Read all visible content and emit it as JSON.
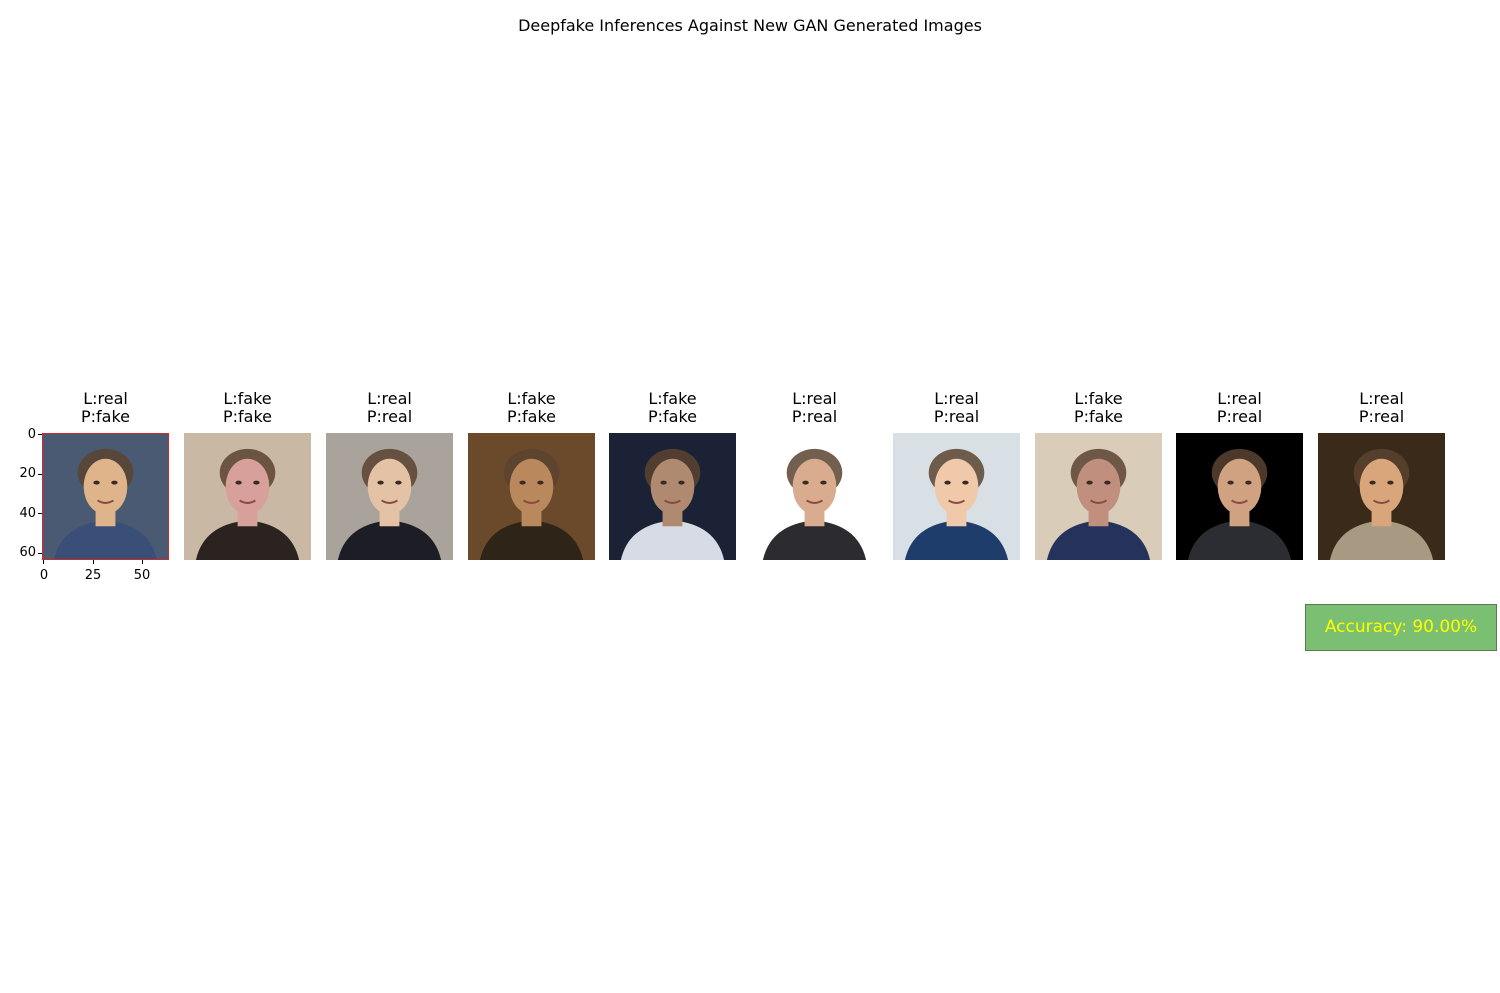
{
  "chart_data": {
    "type": "image-grid",
    "title": "Deepfake Inferences Against New GAN Generated Images",
    "first_axes_yticks": [
      "0",
      "20",
      "40",
      "60"
    ],
    "first_axes_xticks": [
      "0",
      "25",
      "50"
    ],
    "axis_range": [
      0,
      64
    ],
    "panels": [
      {
        "label": "L:real",
        "prediction": "P:fake",
        "subject": "man-with-red-headband-behind",
        "bg": "#4a5a72",
        "face": "#e0b48a",
        "suit": "#3a4f78",
        "mismatch": true
      },
      {
        "label": "L:fake",
        "prediction": "P:fake",
        "subject": "gan-blurred-face",
        "bg": "#c9b9a4",
        "face": "#d8a09a",
        "suit": "#2a2320",
        "mismatch": false
      },
      {
        "label": "L:real",
        "prediction": "P:real",
        "subject": "grey-haired-man-street",
        "bg": "#a9a39b",
        "face": "#e3c2a6",
        "suit": "#1d1d26",
        "mismatch": false
      },
      {
        "label": "L:fake",
        "prediction": "P:fake",
        "subject": "gan-dark-warm-face",
        "bg": "#6b4a2c",
        "face": "#b9885c",
        "suit": "#2f2418",
        "mismatch": false
      },
      {
        "label": "L:fake",
        "prediction": "P:fake",
        "subject": "gan-man-with-glasses",
        "bg": "#1c2236",
        "face": "#b08a70",
        "suit": "#d6dbe6",
        "mismatch": false
      },
      {
        "label": "L:real",
        "prediction": "P:real",
        "subject": "man-with-glasses-white-bg",
        "bg": "#ffffff",
        "face": "#d9ab8f",
        "suit": "#2b2b30",
        "mismatch": false
      },
      {
        "label": "L:real",
        "prediction": "P:real",
        "subject": "smiling-woman-long-hair",
        "bg": "#d8e0e6",
        "face": "#f0c8aa",
        "suit": "#1f3d6b",
        "mismatch": false
      },
      {
        "label": "L:fake",
        "prediction": "P:fake",
        "subject": "gan-face-glasses-light-bg",
        "bg": "#d9ccb8",
        "face": "#c08f7e",
        "suit": "#25335c",
        "mismatch": false
      },
      {
        "label": "L:real",
        "prediction": "P:real",
        "subject": "man-saluting-dark-bg",
        "bg": "#000000",
        "face": "#d0a282",
        "suit": "#2c2c33",
        "mismatch": false
      },
      {
        "label": "L:real",
        "prediction": "P:real",
        "subject": "older-man-beige-suit",
        "bg": "#3a2a1a",
        "face": "#d9a67c",
        "suit": "#a89a82",
        "mismatch": false
      }
    ],
    "accuracy_text": "Accuracy: 90.00%"
  }
}
